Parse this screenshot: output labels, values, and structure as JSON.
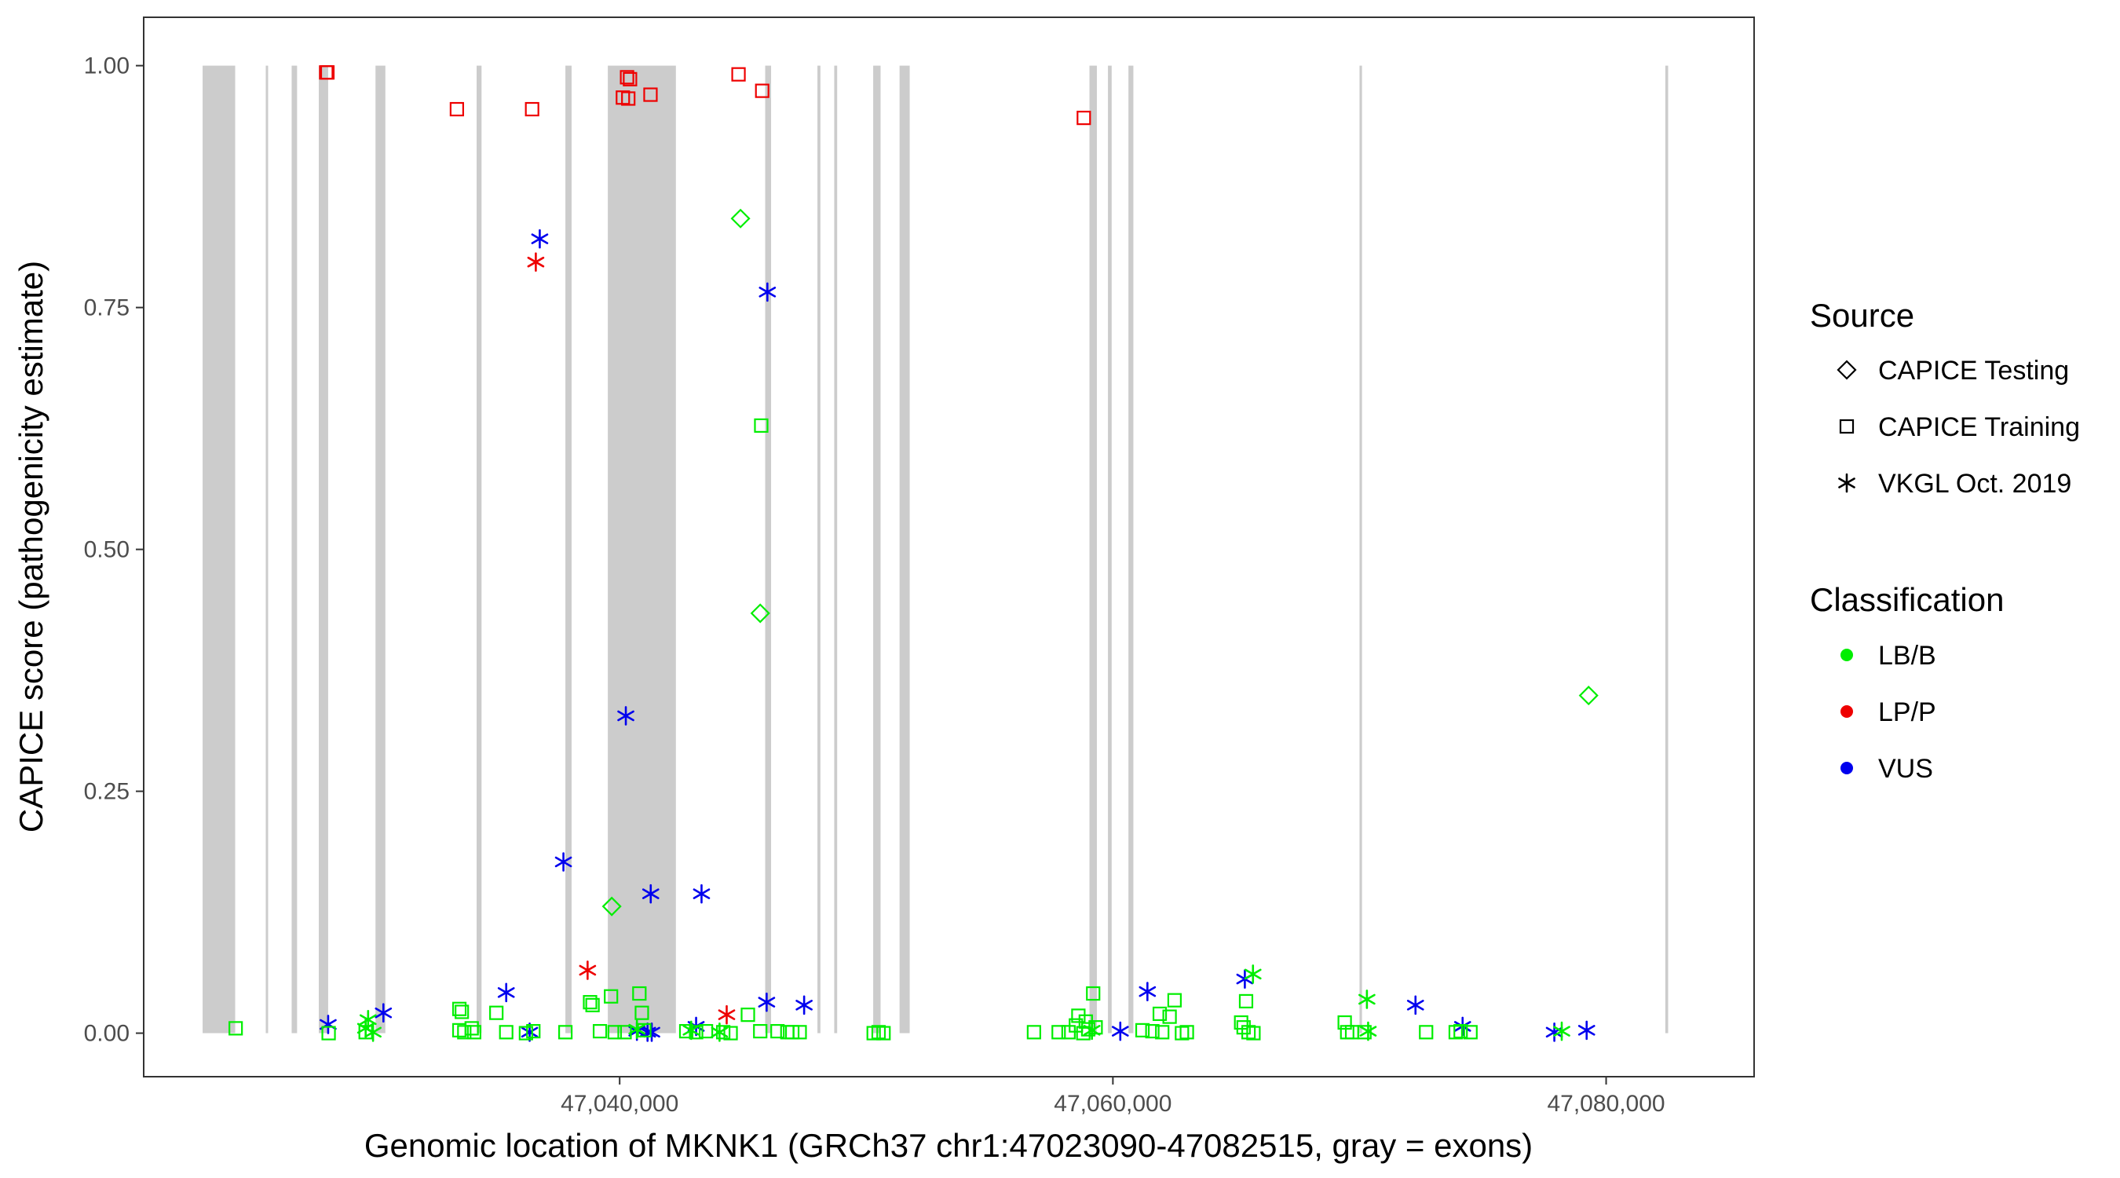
{
  "chart_data": {
    "type": "scatter",
    "xlabel": "Genomic location of MKNK1 (GRCh37 chr1:47023090-47082515, gray = exons)",
    "ylabel": "CAPICE score (pathogenicity estimate)",
    "xlim": [
      20700,
      86000
    ],
    "ylim": [
      -0.045,
      1.05
    ],
    "x_ticks": [
      {
        "value": 40000,
        "label": "47,040,000"
      },
      {
        "value": 60000,
        "label": "47,060,000"
      },
      {
        "value": 80000,
        "label": "47,080,000"
      }
    ],
    "y_ticks": [
      {
        "value": 0,
        "label": "0.00"
      },
      {
        "value": 0.25,
        "label": "0.25"
      },
      {
        "value": 0.5,
        "label": "0.50"
      },
      {
        "value": 0.75,
        "label": "0.75"
      },
      {
        "value": 1,
        "label": "1.00"
      }
    ],
    "x_offset_label": "47,000,000 + x",
    "exons": [
      [
        23090,
        24410
      ],
      [
        25650,
        25720
      ],
      [
        26700,
        26920
      ],
      [
        27800,
        28180
      ],
      [
        30100,
        30500
      ],
      [
        34200,
        34400
      ],
      [
        37800,
        38050
      ],
      [
        39520,
        42280
      ],
      [
        45900,
        46140
      ],
      [
        48020,
        48140
      ],
      [
        48700,
        48820
      ],
      [
        50280,
        50580
      ],
      [
        51350,
        51760
      ],
      [
        59050,
        59350
      ],
      [
        59800,
        59950
      ],
      [
        60630,
        60830
      ],
      [
        70000,
        70100
      ],
      [
        82400,
        82515
      ]
    ],
    "colors": {
      "LB/B": "#00ee00",
      "LP/P": "#ee0000",
      "VUS": "#0000ee",
      "exon": "#cccccc"
    },
    "legend": {
      "source_title": "Source",
      "source_items": [
        {
          "label": "CAPICE Testing",
          "shape": "diamond"
        },
        {
          "label": "CAPICE Training",
          "shape": "square"
        },
        {
          "label": "VKGL Oct. 2019",
          "shape": "asterisk"
        }
      ],
      "class_title": "Classification",
      "class_items": [
        {
          "label": "LB/B",
          "color": "#00ee00"
        },
        {
          "label": "LP/P",
          "color": "#ee0000"
        },
        {
          "label": "VUS",
          "color": "#0000ee"
        }
      ]
    },
    "series": [
      {
        "name": "CAPICE Training",
        "class": "LP/P",
        "shape": "square",
        "points": [
          [
            28100,
            0.993
          ],
          [
            28150,
            0.993
          ],
          [
            33400,
            0.955
          ],
          [
            36450,
            0.955
          ],
          [
            40130,
            0.967
          ],
          [
            40350,
            0.966
          ],
          [
            40420,
            0.986
          ],
          [
            40300,
            0.988
          ],
          [
            41250,
            0.97
          ],
          [
            44820,
            0.991
          ],
          [
            45780,
            0.974
          ],
          [
            58820,
            0.946
          ]
        ]
      },
      {
        "name": "CAPICE Testing",
        "class": "LB/B",
        "shape": "diamond",
        "points": [
          [
            44900,
            0.842
          ],
          [
            45700,
            0.434
          ],
          [
            39680,
            0.131
          ],
          [
            79290,
            0.349
          ]
        ]
      },
      {
        "name": "VKGL Oct. 2019",
        "class": "VUS",
        "shape": "asterisk",
        "points": [
          [
            36760,
            0.821
          ],
          [
            45990,
            0.766
          ],
          [
            40250,
            0.328
          ],
          [
            37720,
            0.177
          ],
          [
            41260,
            0.144
          ],
          [
            43320,
            0.144
          ],
          [
            35400,
            0.042
          ],
          [
            61400,
            0.043
          ],
          [
            65350,
            0.056
          ],
          [
            45960,
            0.032
          ],
          [
            47480,
            0.029
          ],
          [
            72270,
            0.029
          ],
          [
            30420,
            0.021
          ],
          [
            28180,
            0.009
          ],
          [
            43100,
            0.007
          ],
          [
            74180,
            0.007
          ],
          [
            36350,
            0.001
          ],
          [
            40700,
            0.002
          ],
          [
            41130,
            0.001
          ],
          [
            41300,
            0.001
          ],
          [
            60300,
            0.002
          ],
          [
            77900,
            0.001
          ],
          [
            79210,
            0.003
          ]
        ]
      },
      {
        "name": "VKGL Oct. 2019",
        "class": "LP/P",
        "shape": "asterisk",
        "points": [
          [
            36600,
            0.797
          ],
          [
            38700,
            0.065
          ],
          [
            44340,
            0.019
          ]
        ]
      },
      {
        "name": "VKGL Oct. 2019",
        "class": "LB/B",
        "shape": "asterisk",
        "points": [
          [
            29700,
            0.005
          ],
          [
            29800,
            0.014
          ],
          [
            30000,
            0.001
          ],
          [
            40700,
            0.004
          ],
          [
            42900,
            0.003
          ],
          [
            44050,
            0.001
          ],
          [
            59150,
            0.003
          ],
          [
            65680,
            0.061
          ],
          [
            70300,
            0.035
          ],
          [
            70350,
            0.002
          ],
          [
            78200,
            0.002
          ]
        ]
      },
      {
        "name": "CAPICE Training",
        "class": "LB/B",
        "shape": "square",
        "points": [
          [
            45740,
            0.628
          ],
          [
            24430,
            0.005
          ],
          [
            28200,
            0.0
          ],
          [
            29700,
            0.001
          ],
          [
            33500,
            0.025
          ],
          [
            33600,
            0.022
          ],
          [
            33500,
            0.003
          ],
          [
            33700,
            0.001
          ],
          [
            34000,
            0.005
          ],
          [
            34100,
            0.001
          ],
          [
            35000,
            0.021
          ],
          [
            35400,
            0.001
          ],
          [
            36200,
            0.0
          ],
          [
            36500,
            0.002
          ],
          [
            37800,
            0.001
          ],
          [
            38800,
            0.032
          ],
          [
            38900,
            0.029
          ],
          [
            39200,
            0.002
          ],
          [
            39650,
            0.038
          ],
          [
            39800,
            0.001
          ],
          [
            40200,
            0.001
          ],
          [
            40800,
            0.041
          ],
          [
            40900,
            0.021
          ],
          [
            41000,
            0.003
          ],
          [
            42700,
            0.002
          ],
          [
            43100,
            0.001
          ],
          [
            43500,
            0.002
          ],
          [
            44200,
            0.001
          ],
          [
            44500,
            0.0
          ],
          [
            45200,
            0.019
          ],
          [
            45700,
            0.002
          ],
          [
            46400,
            0.002
          ],
          [
            46800,
            0.001
          ],
          [
            47000,
            0.001
          ],
          [
            47300,
            0.001
          ],
          [
            50300,
            0.0
          ],
          [
            50500,
            0.001
          ],
          [
            50700,
            0.0
          ],
          [
            56800,
            0.001
          ],
          [
            57800,
            0.001
          ],
          [
            58200,
            0.001
          ],
          [
            58500,
            0.008
          ],
          [
            58600,
            0.018
          ],
          [
            58800,
            0.0
          ],
          [
            58900,
            0.012
          ],
          [
            59000,
            0.004
          ],
          [
            59200,
            0.041
          ],
          [
            59300,
            0.006
          ],
          [
            61200,
            0.003
          ],
          [
            61600,
            0.002
          ],
          [
            61900,
            0.02
          ],
          [
            62000,
            0.001
          ],
          [
            62300,
            0.017
          ],
          [
            62500,
            0.034
          ],
          [
            62800,
            0.0
          ],
          [
            63000,
            0.001
          ],
          [
            65200,
            0.011
          ],
          [
            65300,
            0.006
          ],
          [
            65400,
            0.033
          ],
          [
            65500,
            0.001
          ],
          [
            65700,
            0.0
          ],
          [
            69400,
            0.011
          ],
          [
            69500,
            0.001
          ],
          [
            69700,
            0.001
          ],
          [
            70200,
            0.001
          ],
          [
            72700,
            0.001
          ],
          [
            73900,
            0.001
          ],
          [
            74100,
            0.002
          ],
          [
            74500,
            0.001
          ]
        ]
      }
    ]
  }
}
